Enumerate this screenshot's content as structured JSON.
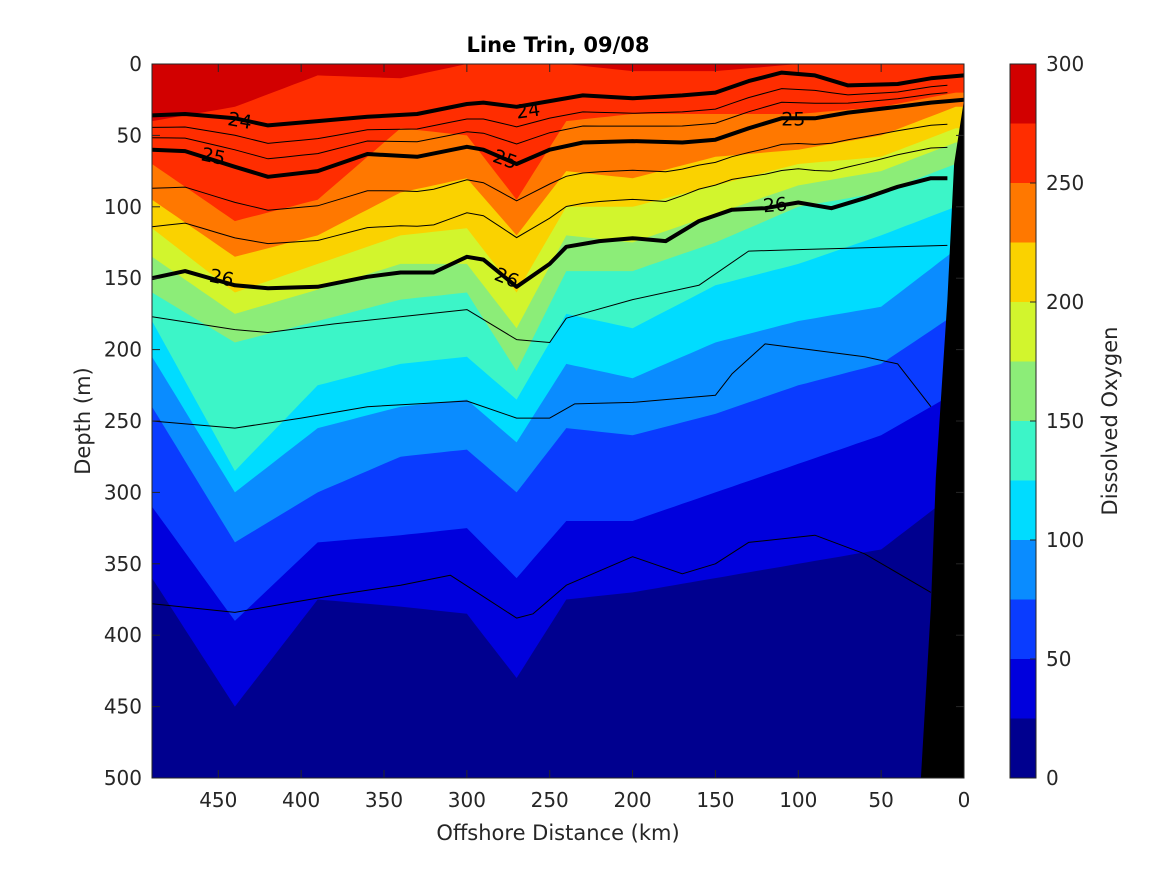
{
  "chart_data": {
    "type": "heatmap",
    "title": "Line Trin, 09/08",
    "xlabel": "Offshore Distance (km)",
    "ylabel": "Depth (m)",
    "colorbar_label": "Dissolved Oxygen",
    "xlim": [
      490,
      0
    ],
    "ylim": [
      500,
      0
    ],
    "x_reversed": true,
    "y_reversed": true,
    "x_ticks": [
      450,
      400,
      350,
      300,
      250,
      200,
      150,
      100,
      50,
      0
    ],
    "y_ticks": [
      0,
      50,
      100,
      150,
      200,
      250,
      300,
      350,
      400,
      450,
      500
    ],
    "colorbar_ticks": [
      0,
      50,
      100,
      150,
      200,
      250,
      300
    ],
    "levels": [
      0,
      25,
      50,
      75,
      100,
      125,
      150,
      175,
      200,
      225,
      250,
      275,
      300
    ],
    "level_colors": [
      "#00008f",
      "#0000dd",
      "#0a3cff",
      "#0a8cff",
      "#00dcff",
      "#3cf5c8",
      "#8ced78",
      "#d2f52d",
      "#fad200",
      "#ff7800",
      "#ff2d00",
      "#d20000"
    ],
    "oxygen_profiles": [
      {
        "x": 490,
        "thresholds": [
          40,
          70,
          95,
          115,
          135,
          160,
          180,
          205,
          240,
          310,
          360,
          415
        ]
      },
      {
        "x": 440,
        "thresholds": [
          30,
          110,
          135,
          160,
          175,
          195,
          285,
          300,
          335,
          390,
          450,
          600
        ]
      },
      {
        "x": 390,
        "thresholds": [
          8,
          95,
          120,
          140,
          158,
          180,
          225,
          255,
          300,
          335,
          375,
          430
        ]
      },
      {
        "x": 340,
        "thresholds": [
          10,
          45,
          90,
          120,
          140,
          165,
          210,
          240,
          275,
          330,
          380,
          440
        ]
      },
      {
        "x": 300,
        "thresholds": [
          0,
          50,
          80,
          115,
          140,
          160,
          205,
          235,
          270,
          325,
          385,
          445
        ]
      },
      {
        "x": 270,
        "thresholds": [
          0,
          95,
          120,
          160,
          185,
          215,
          235,
          265,
          300,
          360,
          430,
          475
        ]
      },
      {
        "x": 240,
        "thresholds": [
          0,
          40,
          75,
          100,
          120,
          145,
          175,
          210,
          255,
          320,
          375,
          450
        ]
      },
      {
        "x": 200,
        "thresholds": [
          5,
          35,
          80,
          100,
          125,
          145,
          185,
          220,
          260,
          320,
          370,
          410
        ]
      },
      {
        "x": 150,
        "thresholds": [
          5,
          35,
          65,
          85,
          105,
          125,
          155,
          195,
          245,
          300,
          360,
          400
        ]
      },
      {
        "x": 100,
        "thresholds": [
          0,
          35,
          60,
          70,
          85,
          100,
          140,
          180,
          225,
          280,
          350,
          400
        ]
      },
      {
        "x": 50,
        "thresholds": [
          0,
          30,
          50,
          65,
          75,
          90,
          120,
          170,
          210,
          260,
          340,
          395
        ]
      },
      {
        "x": 5,
        "thresholds": [
          0,
          20,
          30,
          45,
          55,
          70,
          100,
          130,
          175,
          230,
          300,
          390
        ]
      }
    ],
    "density_contours": [
      {
        "label": "24",
        "bold": true,
        "x": [
          490,
          470,
          440,
          420,
          390,
          360,
          330,
          300,
          290,
          270,
          250,
          230,
          200,
          170,
          150,
          130,
          110,
          90,
          70,
          40,
          20,
          0
        ],
        "y": [
          36,
          35,
          38,
          43,
          40,
          37,
          35,
          28,
          27,
          30,
          26,
          22,
          24,
          22,
          20,
          12,
          6,
          8,
          15,
          14,
          10,
          8
        ]
      },
      {
        "label": "25",
        "bold": true,
        "x": [
          490,
          470,
          440,
          420,
          390,
          360,
          330,
          300,
          290,
          270,
          250,
          230,
          200,
          170,
          150,
          130,
          110,
          90,
          70,
          40,
          20,
          0
        ],
        "y": [
          60,
          61,
          72,
          79,
          75,
          63,
          65,
          58,
          60,
          70,
          60,
          55,
          54,
          55,
          53,
          45,
          38,
          38,
          34,
          30,
          27,
          25
        ]
      },
      {
        "label": "26",
        "bold": true,
        "x": [
          490,
          470,
          440,
          420,
          390,
          360,
          340,
          320,
          300,
          290,
          270,
          250,
          240,
          220,
          200,
          180,
          160,
          140,
          120,
          100,
          80,
          60,
          40,
          20,
          10
        ],
        "y": [
          150,
          145,
          155,
          157,
          156,
          149,
          146,
          146,
          135,
          137,
          156,
          140,
          128,
          124,
          122,
          124,
          110,
          102,
          101,
          97,
          101,
          94,
          86,
          80,
          80
        ]
      },
      {
        "label": "",
        "bold": false,
        "x": [
          490,
          440,
          420,
          380,
          340,
          300,
          270,
          250,
          240,
          200,
          160,
          130,
          100,
          70,
          40,
          10
        ],
        "y": [
          177,
          186,
          188,
          182,
          177,
          172,
          193,
          195,
          178,
          165,
          155,
          131,
          130,
          129,
          128,
          127
        ]
      },
      {
        "label": "",
        "bold": false,
        "x": [
          490,
          440,
          400,
          360,
          330,
          300,
          270,
          250,
          235,
          200,
          150,
          140,
          120,
          60,
          40,
          20
        ],
        "y": [
          250,
          255,
          248,
          240,
          238,
          236,
          248,
          248,
          238,
          237,
          232,
          217,
          196,
          205,
          210,
          240
        ]
      },
      {
        "label": "",
        "bold": false,
        "x": [
          490,
          440,
          410,
          380,
          340,
          310,
          290,
          270,
          260,
          240,
          200,
          170,
          150,
          130,
          90,
          60,
          20
        ],
        "y": [
          378,
          384,
          378,
          372,
          365,
          358,
          373,
          388,
          385,
          365,
          345,
          357,
          350,
          335,
          330,
          343,
          370
        ]
      }
    ],
    "density_labels": [
      {
        "text": "24",
        "x": 437,
        "y": 40,
        "angle": 10
      },
      {
        "text": "24",
        "x": 263,
        "y": 33,
        "angle": -8
      },
      {
        "text": "25",
        "x": 453,
        "y": 65,
        "angle": 12
      },
      {
        "text": "25",
        "x": 277,
        "y": 67,
        "angle": 20
      },
      {
        "text": "25",
        "x": 103,
        "y": 39,
        "angle": 0
      },
      {
        "text": "26",
        "x": 448,
        "y": 150,
        "angle": 12
      },
      {
        "text": "26",
        "x": 276,
        "y": 150,
        "angle": 22
      },
      {
        "text": "26",
        "x": 114,
        "y": 99,
        "angle": -5
      }
    ],
    "seafloor": {
      "x": [
        26,
        20,
        17,
        10,
        6,
        0
      ],
      "y": [
        500,
        380,
        290,
        165,
        70,
        25
      ]
    },
    "grid": false
  }
}
